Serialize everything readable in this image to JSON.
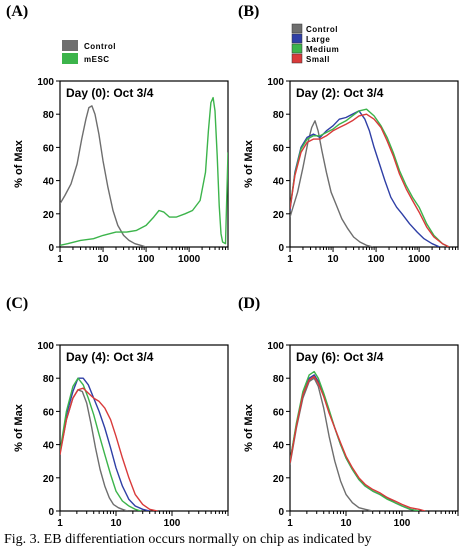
{
  "figure": {
    "caption": "Fig. 3. EB differentiation occurs normally on chip as indicated by"
  },
  "chart_data": [
    {
      "type": "line",
      "panel_label": "(A)",
      "annotation": "Day (0): Oct 3/4",
      "ylabel": "% of Max",
      "xlabel": "",
      "xscale": "log",
      "xlim": [
        1,
        8000
      ],
      "ylim": [
        0,
        100
      ],
      "yticks": [
        0,
        20,
        40,
        60,
        80,
        100
      ],
      "xticks": [
        1,
        10,
        100,
        1000
      ],
      "legend": {
        "placement": "top",
        "entries": [
          "Control",
          "mESC"
        ]
      },
      "series": [
        {
          "name": "Control",
          "color": "#6e6e6e",
          "x": [
            1,
            1.3,
            1.8,
            2.5,
            3.2,
            4.0,
            4.7,
            5.5,
            6.5,
            8,
            10,
            13,
            17,
            22,
            30,
            40,
            55,
            75,
            100
          ],
          "y": [
            26,
            31,
            38,
            50,
            65,
            77,
            84,
            85,
            80,
            68,
            52,
            36,
            22,
            13,
            7,
            4,
            2,
            1,
            0
          ]
        },
        {
          "name": "mESC",
          "color": "#3cb44b",
          "x": [
            1,
            1.5,
            3,
            6,
            10,
            20,
            35,
            60,
            100,
            150,
            200,
            260,
            350,
            500,
            800,
            1200,
            1800,
            2400,
            2800,
            3200,
            3600,
            4000,
            4500,
            5000,
            5500,
            6000,
            7000,
            8000
          ],
          "y": [
            1,
            2,
            4,
            5,
            7,
            9,
            9,
            10,
            13,
            18,
            22,
            21,
            18,
            18,
            20,
            22,
            28,
            45,
            70,
            87,
            90,
            82,
            55,
            25,
            8,
            3,
            2,
            57
          ]
        }
      ]
    },
    {
      "type": "line",
      "panel_label": "(B)",
      "annotation": "Day (2): Oct 3/4",
      "ylabel": "% of Max",
      "xlabel": "",
      "xscale": "log",
      "xlim": [
        1,
        8000
      ],
      "ylim": [
        0,
        100
      ],
      "yticks": [
        0,
        20,
        40,
        60,
        80,
        100
      ],
      "xticks": [
        1,
        10,
        100,
        1000
      ],
      "legend": {
        "placement": "top-left",
        "entries": [
          "Control",
          "Large",
          "Medium",
          "Small"
        ]
      },
      "series": [
        {
          "name": "Control",
          "color": "#6e6e6e",
          "x": [
            1,
            1.5,
            2,
            2.6,
            3.2,
            3.8,
            4.5,
            5.5,
            7,
            9,
            12,
            16,
            22,
            30,
            42,
            60,
            85
          ],
          "y": [
            18,
            33,
            48,
            63,
            72,
            76,
            70,
            58,
            45,
            33,
            25,
            17,
            11,
            6,
            3,
            1,
            0
          ]
        },
        {
          "name": "Large",
          "color": "#2f3fa6",
          "x": [
            1,
            1.3,
            1.8,
            2.5,
            3.5,
            5,
            7,
            10,
            14,
            20,
            28,
            40,
            55,
            70,
            90,
            120,
            160,
            220,
            300,
            400,
            600,
            900,
            1300,
            2000,
            3000
          ],
          "y": [
            22,
            45,
            60,
            66,
            68,
            66,
            70,
            73,
            77,
            78,
            80,
            82,
            77,
            70,
            60,
            50,
            40,
            30,
            24,
            20,
            14,
            9,
            5,
            2,
            0
          ]
        },
        {
          "name": "Medium",
          "color": "#3cb44b",
          "x": [
            1,
            1.3,
            1.8,
            2.5,
            3.5,
            5,
            7,
            10,
            14,
            20,
            28,
            40,
            60,
            90,
            130,
            180,
            250,
            350,
            500,
            700,
            1000,
            1500,
            2200,
            3500,
            5000
          ],
          "y": [
            24,
            44,
            59,
            65,
            67,
            67,
            69,
            71,
            74,
            76,
            79,
            82,
            83,
            79,
            73,
            66,
            57,
            46,
            37,
            30,
            24,
            14,
            7,
            2,
            0
          ]
        },
        {
          "name": "Small",
          "color": "#d93a3a",
          "x": [
            1,
            1.3,
            1.8,
            2.5,
            3.5,
            5,
            7,
            10,
            14,
            20,
            28,
            40,
            60,
            90,
            130,
            180,
            250,
            350,
            500,
            700,
            1000,
            1500,
            2200,
            3500,
            5000
          ],
          "y": [
            23,
            43,
            57,
            63,
            65,
            65,
            67,
            70,
            72,
            74,
            76,
            79,
            80,
            77,
            72,
            64,
            55,
            44,
            35,
            28,
            21,
            12,
            6,
            2,
            0
          ]
        }
      ]
    },
    {
      "type": "line",
      "panel_label": "(C)",
      "annotation": "Day (4): Oct 3/4",
      "ylabel": "% of Max",
      "xlabel": "",
      "xscale": "log",
      "xlim": [
        1,
        1000
      ],
      "ylim": [
        0,
        100
      ],
      "yticks": [
        0,
        20,
        40,
        60,
        80,
        100
      ],
      "xticks": [
        1,
        10,
        100
      ],
      "series": [
        {
          "name": "Control",
          "color": "#6e6e6e",
          "x": [
            1,
            1.3,
            1.7,
            2.1,
            2.5,
            3,
            3.6,
            4.3,
            5.2,
            6.3,
            7.6,
            9,
            11,
            13,
            16
          ],
          "y": [
            35,
            55,
            68,
            73,
            72,
            65,
            52,
            38,
            25,
            15,
            8,
            4,
            2,
            1,
            0
          ]
        },
        {
          "name": "Large",
          "color": "#2f3fa6",
          "x": [
            1,
            1.3,
            1.7,
            2.1,
            2.6,
            3.2,
            4,
            5,
            6.3,
            8,
            10,
            13,
            17,
            22,
            30,
            40
          ],
          "y": [
            35,
            58,
            72,
            80,
            80,
            76,
            68,
            60,
            50,
            38,
            26,
            15,
            7,
            3,
            1,
            0
          ]
        },
        {
          "name": "Medium",
          "color": "#3cb44b",
          "x": [
            1,
            1.3,
            1.7,
            2.1,
            2.6,
            3.2,
            4,
            5,
            6.3,
            8,
            10,
            13,
            17,
            22,
            28
          ],
          "y": [
            36,
            60,
            75,
            80,
            76,
            68,
            58,
            46,
            34,
            22,
            12,
            6,
            3,
            1,
            0
          ]
        },
        {
          "name": "Small",
          "color": "#d93a3a",
          "x": [
            1,
            1.3,
            1.7,
            2.1,
            2.6,
            3.2,
            4,
            5,
            6.3,
            8,
            10,
            13,
            17,
            22,
            30,
            40,
            55
          ],
          "y": [
            34,
            55,
            68,
            73,
            74,
            71,
            68,
            66,
            62,
            55,
            45,
            32,
            20,
            10,
            4,
            1,
            0
          ]
        }
      ]
    },
    {
      "type": "line",
      "panel_label": "(D)",
      "annotation": "Day (6): Oct 3/4",
      "ylabel": "% of Max",
      "xlabel": "",
      "xscale": "log",
      "xlim": [
        1,
        1000
      ],
      "ylim": [
        0,
        100
      ],
      "yticks": [
        0,
        20,
        40,
        60,
        80,
        100
      ],
      "xticks": [
        1,
        10,
        100
      ],
      "series": [
        {
          "name": "Control",
          "color": "#6e6e6e",
          "x": [
            1,
            1.3,
            1.7,
            2.2,
            2.7,
            3.2,
            4,
            5,
            6.3,
            8,
            10,
            13,
            17,
            22,
            30
          ],
          "y": [
            28,
            50,
            68,
            78,
            80,
            75,
            62,
            45,
            30,
            18,
            10,
            5,
            2,
            1,
            0
          ]
        },
        {
          "name": "Large",
          "color": "#2f3fa6",
          "x": [
            1,
            1.3,
            1.7,
            2.2,
            2.7,
            3.2,
            4,
            5,
            6.3,
            8,
            10,
            13,
            17,
            22,
            30,
            40,
            55,
            75,
            100,
            140,
            200
          ],
          "y": [
            30,
            52,
            70,
            80,
            82,
            78,
            70,
            60,
            50,
            40,
            32,
            25,
            19,
            15,
            12,
            10,
            8,
            5,
            3,
            1,
            0
          ]
        },
        {
          "name": "Medium",
          "color": "#3cb44b",
          "x": [
            1,
            1.3,
            1.7,
            2.2,
            2.7,
            3.2,
            4,
            5,
            6.3,
            8,
            10,
            13,
            17,
            22,
            30,
            40,
            55,
            75,
            100,
            140,
            200
          ],
          "y": [
            30,
            53,
            72,
            82,
            84,
            80,
            71,
            61,
            50,
            40,
            32,
            25,
            19,
            15,
            12,
            10,
            7,
            5,
            3,
            1,
            0
          ]
        },
        {
          "name": "Small",
          "color": "#d93a3a",
          "x": [
            1,
            1.3,
            1.7,
            2.2,
            2.7,
            3.2,
            4,
            5,
            6.3,
            8,
            10,
            13,
            17,
            22,
            30,
            40,
            55,
            75,
            100,
            140,
            200,
            260
          ],
          "y": [
            29,
            51,
            70,
            79,
            81,
            77,
            69,
            59,
            50,
            41,
            33,
            26,
            20,
            16,
            13,
            11,
            8,
            6,
            4,
            2,
            1,
            0
          ]
        }
      ]
    }
  ]
}
